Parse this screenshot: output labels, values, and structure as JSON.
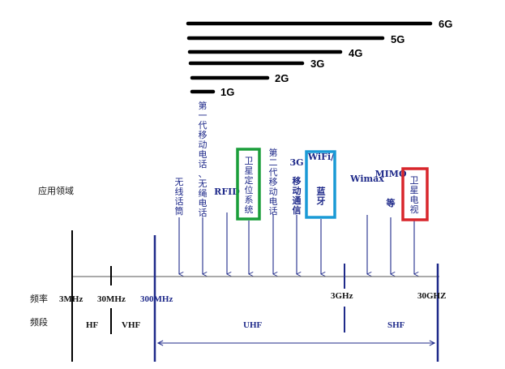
{
  "generations": [
    {
      "label": "1G"
    },
    {
      "label": "2G"
    },
    {
      "label": "3G"
    },
    {
      "label": "4G"
    },
    {
      "label": "5G"
    },
    {
      "label": "6G"
    }
  ],
  "row_labels": {
    "application": "应用领域",
    "frequency": "频率",
    "band": "频段"
  },
  "applications": [
    {
      "label": "无线话筒",
      "highlight": ""
    },
    {
      "label": "第一代移动电话、无绳电话",
      "highlight": ""
    },
    {
      "label": "RFID",
      "highlight": ""
    },
    {
      "label": "卫星定位系统",
      "highlight": "#1a9e3a"
    },
    {
      "label": "第二代移动电话",
      "highlight": ""
    },
    {
      "label": "3G移动通信",
      "highlight": ""
    },
    {
      "label": "WiFi/蓝牙",
      "highlight": "#1a9ad6"
    },
    {
      "label": "Wimax",
      "highlight": ""
    },
    {
      "label": "MIMO等",
      "highlight": ""
    },
    {
      "label": "卫星电视",
      "highlight": "#d8262b"
    }
  ],
  "frequencies": [
    "3MHz",
    "30MHz",
    "300MHz",
    "3GHz",
    "30GHZ"
  ],
  "bands": [
    "HF",
    "VHF",
    "UHF",
    "SHF"
  ],
  "colors": {
    "axis_blue": "#1f2a8a",
    "green_box": "#1a9e3a",
    "blue_box": "#1a9ad6",
    "red_box": "#d8262b"
  }
}
